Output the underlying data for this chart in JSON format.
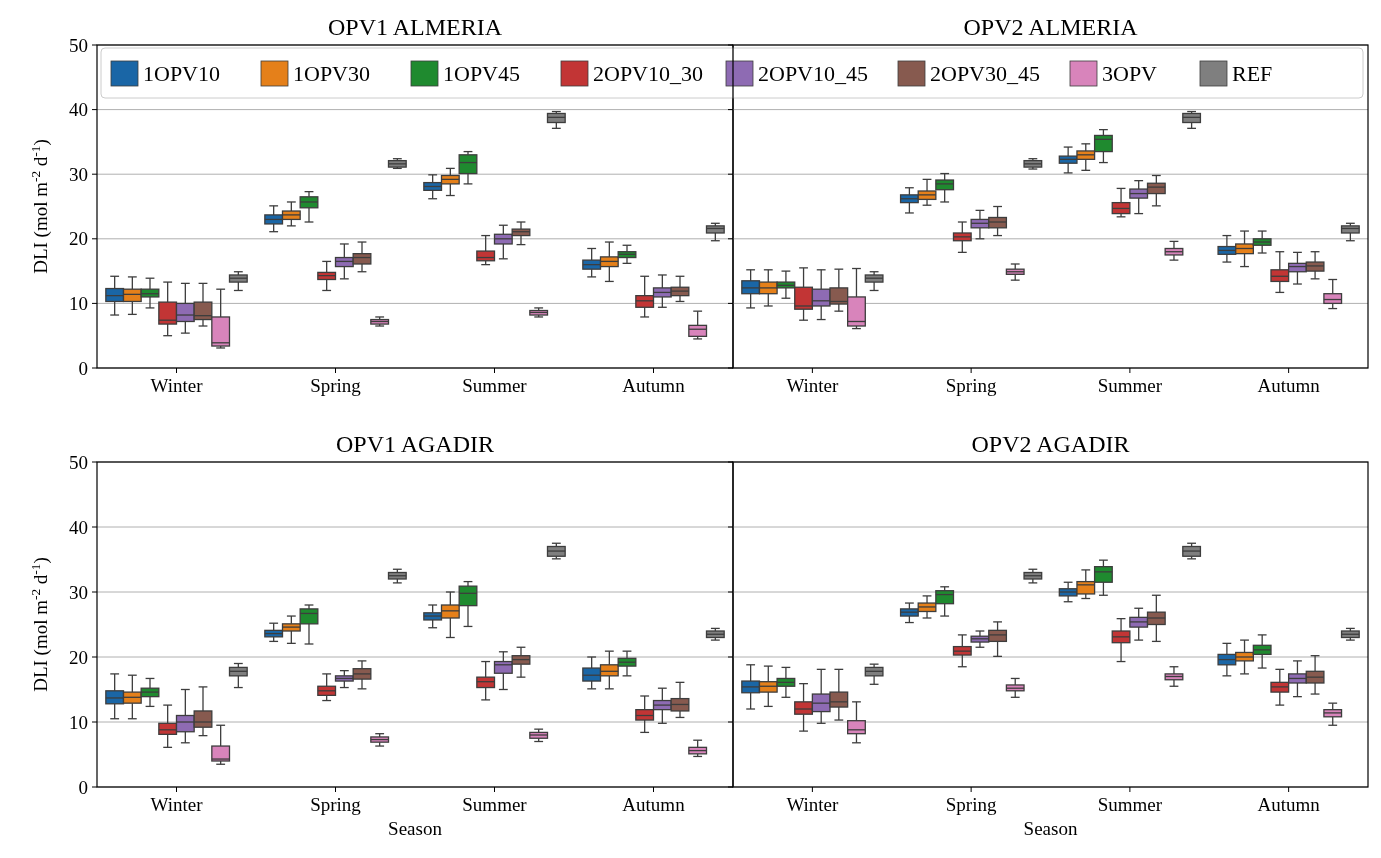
{
  "chart_data": [
    {
      "type": "box",
      "title": "OPV1 ALMERIA",
      "ylabel": "DLI (mol m$^{-2}$ d$^{-1}$)",
      "categories": [
        "Winter",
        "Spring",
        "Summer",
        "Autumn"
      ],
      "ylim": [
        0,
        50
      ],
      "yticks": [
        0,
        10,
        20,
        30,
        40,
        50
      ],
      "grid": "y",
      "legend": "top",
      "series": [
        {
          "name": "1OPV10",
          "color": "#1a66a6",
          "boxes": [
            {
              "low": 8.2,
              "q1": 10.3,
              "median": 11.2,
              "q3": 12.3,
              "high": 14.2
            },
            {
              "low": 21.1,
              "q1": 22.3,
              "median": 23.0,
              "q3": 23.7,
              "high": 25.1
            },
            {
              "low": 26.2,
              "q1": 27.5,
              "median": 28.1,
              "q3": 28.7,
              "high": 29.9
            },
            {
              "low": 14.1,
              "q1": 15.3,
              "median": 16.0,
              "q3": 16.7,
              "high": 18.5
            }
          ]
        },
        {
          "name": "1OPV30",
          "color": "#e5801a",
          "boxes": [
            {
              "low": 8.3,
              "q1": 10.3,
              "median": 11.4,
              "q3": 12.2,
              "high": 14.1
            },
            {
              "low": 22.0,
              "q1": 23.0,
              "median": 23.7,
              "q3": 24.3,
              "high": 25.7
            },
            {
              "low": 26.7,
              "q1": 28.5,
              "median": 29.2,
              "q3": 29.8,
              "high": 30.9
            },
            {
              "low": 13.4,
              "q1": 15.7,
              "median": 16.5,
              "q3": 17.2,
              "high": 19.5
            }
          ]
        },
        {
          "name": "1OPV45",
          "color": "#1f8a2f",
          "boxes": [
            {
              "low": 9.3,
              "q1": 11.0,
              "median": 11.5,
              "q3": 12.2,
              "high": 13.9
            },
            {
              "low": 22.6,
              "q1": 24.8,
              "median": 25.7,
              "q3": 26.5,
              "high": 27.3
            },
            {
              "low": 28.5,
              "q1": 30.1,
              "median": 31.8,
              "q3": 33.0,
              "high": 33.5
            },
            {
              "low": 16.2,
              "q1": 17.1,
              "median": 17.6,
              "q3": 18.0,
              "high": 19.0
            }
          ]
        },
        {
          "name": "2OPV10_30",
          "color": "#c23535",
          "boxes": [
            {
              "low": 5.0,
              "q1": 6.8,
              "median": 7.4,
              "q3": 10.2,
              "high": 13.3
            },
            {
              "low": 12.0,
              "q1": 13.7,
              "median": 14.3,
              "q3": 14.8,
              "high": 16.5
            },
            {
              "low": 16.0,
              "q1": 16.6,
              "median": 17.1,
              "q3": 18.1,
              "high": 20.5
            },
            {
              "low": 7.9,
              "q1": 9.4,
              "median": 10.4,
              "q3": 11.2,
              "high": 14.2
            }
          ]
        },
        {
          "name": "2OPV10_45",
          "color": "#8e6bb3",
          "boxes": [
            {
              "low": 5.4,
              "q1": 7.2,
              "median": 8.2,
              "q3": 10.0,
              "high": 13.1
            },
            {
              "low": 13.8,
              "q1": 15.7,
              "median": 16.5,
              "q3": 17.1,
              "high": 19.2
            },
            {
              "low": 16.9,
              "q1": 19.2,
              "median": 20.0,
              "q3": 20.7,
              "high": 22.1
            },
            {
              "low": 9.4,
              "q1": 11.0,
              "median": 11.7,
              "q3": 12.4,
              "high": 14.4
            }
          ]
        },
        {
          "name": "2OPV30_45",
          "color": "#875a4f",
          "boxes": [
            {
              "low": 6.5,
              "q1": 7.5,
              "median": 8.1,
              "q3": 10.2,
              "high": 13.1
            },
            {
              "low": 14.9,
              "q1": 16.1,
              "median": 17.1,
              "q3": 17.7,
              "high": 19.5
            },
            {
              "low": 19.1,
              "q1": 20.5,
              "median": 21.1,
              "q3": 21.5,
              "high": 22.6
            },
            {
              "low": 10.3,
              "q1": 11.2,
              "median": 11.9,
              "q3": 12.5,
              "high": 14.2
            }
          ]
        },
        {
          "name": "3OPV",
          "color": "#d884bb",
          "boxes": [
            {
              "low": 3.1,
              "q1": 3.4,
              "median": 3.9,
              "q3": 7.9,
              "high": 12.2
            },
            {
              "low": 6.5,
              "q1": 6.8,
              "median": 7.2,
              "q3": 7.5,
              "high": 7.9
            },
            {
              "low": 7.9,
              "q1": 8.2,
              "median": 8.6,
              "q3": 8.9,
              "high": 9.3
            },
            {
              "low": 4.5,
              "q1": 4.9,
              "median": 6.0,
              "q3": 6.6,
              "high": 8.8
            }
          ]
        },
        {
          "name": "REF",
          "color": "#7f7f7f",
          "boxes": [
            {
              "low": 12.0,
              "q1": 13.3,
              "median": 13.9,
              "q3": 14.4,
              "high": 14.9
            },
            {
              "low": 30.9,
              "q1": 31.1,
              "median": 31.6,
              "q3": 32.1,
              "high": 32.4
            },
            {
              "low": 37.1,
              "q1": 38.0,
              "median": 38.8,
              "q3": 39.4,
              "high": 39.7
            },
            {
              "low": 19.7,
              "q1": 20.9,
              "median": 21.6,
              "q3": 22.0,
              "high": 22.4
            }
          ]
        }
      ]
    },
    {
      "type": "box",
      "title": "OPV2 ALMERIA",
      "categories": [
        "Winter",
        "Spring",
        "Summer",
        "Autumn"
      ],
      "ylim": [
        0,
        50
      ],
      "yticks": [
        0,
        10,
        20,
        30,
        40,
        50
      ],
      "grid": "y",
      "tick_labels": "x",
      "series": [
        {
          "color": "#1a66a6",
          "boxes": [
            {
              "low": 9.3,
              "q1": 11.5,
              "median": 12.4,
              "q3": 13.5,
              "high": 15.2
            },
            {
              "low": 24.0,
              "q1": 25.6,
              "median": 26.2,
              "q3": 26.8,
              "high": 27.9
            },
            {
              "low": 30.2,
              "q1": 31.7,
              "median": 32.3,
              "q3": 32.8,
              "high": 34.2
            },
            {
              "low": 16.4,
              "q1": 17.6,
              "median": 18.2,
              "q3": 18.8,
              "high": 20.5
            }
          ]
        },
        {
          "color": "#e5801a",
          "boxes": [
            {
              "low": 9.6,
              "q1": 11.5,
              "median": 12.4,
              "q3": 13.3,
              "high": 15.2
            },
            {
              "low": 25.2,
              "q1": 26.1,
              "median": 26.8,
              "q3": 27.4,
              "high": 29.2
            },
            {
              "low": 30.6,
              "q1": 32.3,
              "median": 33.0,
              "q3": 33.6,
              "high": 34.7
            },
            {
              "low": 15.7,
              "q1": 17.7,
              "median": 18.5,
              "q3": 19.2,
              "high": 21.2
            }
          ]
        },
        {
          "color": "#1f8a2f",
          "boxes": [
            {
              "low": 10.8,
              "q1": 12.4,
              "median": 12.8,
              "q3": 13.3,
              "high": 15.0
            },
            {
              "low": 25.7,
              "q1": 27.6,
              "median": 28.5,
              "q3": 29.1,
              "high": 30.1
            },
            {
              "low": 31.8,
              "q1": 33.5,
              "median": 35.4,
              "q3": 36.0,
              "high": 36.9
            },
            {
              "low": 17.8,
              "q1": 19.0,
              "median": 19.5,
              "q3": 20.0,
              "high": 21.2
            }
          ]
        },
        {
          "color": "#c23535",
          "boxes": [
            {
              "low": 7.4,
              "q1": 9.1,
              "median": 9.6,
              "q3": 12.5,
              "high": 15.5
            },
            {
              "low": 17.9,
              "q1": 19.7,
              "median": 20.3,
              "q3": 20.9,
              "high": 22.6
            },
            {
              "low": 23.4,
              "q1": 23.9,
              "median": 24.7,
              "q3": 25.6,
              "high": 27.8
            },
            {
              "low": 11.7,
              "q1": 13.4,
              "median": 14.2,
              "q3": 15.2,
              "high": 18.0
            }
          ]
        },
        {
          "color": "#8e6bb3",
          "boxes": [
            {
              "low": 7.5,
              "q1": 9.6,
              "median": 10.4,
              "q3": 12.2,
              "high": 15.2
            },
            {
              "low": 20.0,
              "q1": 21.7,
              "median": 22.4,
              "q3": 23.0,
              "high": 24.4
            },
            {
              "low": 23.9,
              "q1": 26.3,
              "median": 27.0,
              "q3": 27.7,
              "high": 29.0
            },
            {
              "low": 13.0,
              "q1": 14.9,
              "median": 15.7,
              "q3": 16.2,
              "high": 17.9
            }
          ]
        },
        {
          "color": "#875a4f",
          "boxes": [
            {
              "low": 8.8,
              "q1": 9.9,
              "median": 10.3,
              "q3": 12.4,
              "high": 15.3
            },
            {
              "low": 20.5,
              "q1": 21.7,
              "median": 22.6,
              "q3": 23.3,
              "high": 25.0
            },
            {
              "low": 25.1,
              "q1": 27.0,
              "median": 28.0,
              "q3": 28.6,
              "high": 29.8
            },
            {
              "low": 13.8,
              "q1": 15.0,
              "median": 15.8,
              "q3": 16.4,
              "high": 18.0
            }
          ]
        },
        {
          "color": "#d884bb",
          "boxes": [
            {
              "low": 6.1,
              "q1": 6.5,
              "median": 7.2,
              "q3": 11.0,
              "high": 15.4
            },
            {
              "low": 13.6,
              "q1": 14.5,
              "median": 14.9,
              "q3": 15.3,
              "high": 16.1
            },
            {
              "low": 16.7,
              "q1": 17.5,
              "median": 18.0,
              "q3": 18.5,
              "high": 19.6
            },
            {
              "low": 9.2,
              "q1": 10.0,
              "median": 10.6,
              "q3": 11.5,
              "high": 13.7
            }
          ]
        },
        {
          "color": "#7f7f7f",
          "boxes": [
            {
              "low": 12.0,
              "q1": 13.3,
              "median": 13.9,
              "q3": 14.4,
              "high": 14.9
            },
            {
              "low": 30.8,
              "q1": 31.1,
              "median": 31.6,
              "q3": 32.1,
              "high": 32.4
            },
            {
              "low": 37.1,
              "q1": 38.0,
              "median": 38.8,
              "q3": 39.4,
              "high": 39.7
            },
            {
              "low": 19.7,
              "q1": 20.9,
              "median": 21.6,
              "q3": 22.0,
              "high": 22.4
            }
          ]
        }
      ]
    },
    {
      "type": "box",
      "title": "OPV1 AGADIR",
      "xlabel": "Season",
      "ylabel": "DLI (mol m$^{-2}$ d$^{-1}$)",
      "categories": [
        "Winter",
        "Spring",
        "Summer",
        "Autumn"
      ],
      "ylim": [
        0,
        50
      ],
      "yticks": [
        0,
        10,
        20,
        30,
        40,
        50
      ],
      "grid": "y",
      "series": [
        {
          "color": "#1a66a6",
          "boxes": [
            {
              "low": 10.5,
              "q1": 12.8,
              "median": 13.7,
              "q3": 14.8,
              "high": 17.4
            },
            {
              "low": 22.4,
              "q1": 23.1,
              "median": 23.6,
              "q3": 24.1,
              "high": 25.2
            },
            {
              "low": 24.5,
              "q1": 25.7,
              "median": 26.3,
              "q3": 26.8,
              "high": 28.0
            },
            {
              "low": 15.1,
              "q1": 16.3,
              "median": 17.2,
              "q3": 18.3,
              "high": 20.0
            }
          ]
        },
        {
          "color": "#e5801a",
          "boxes": [
            {
              "low": 10.5,
              "q1": 12.9,
              "median": 13.8,
              "q3": 14.6,
              "high": 17.2
            },
            {
              "low": 22.1,
              "q1": 24.0,
              "median": 24.6,
              "q3": 25.1,
              "high": 26.3
            },
            {
              "low": 23.0,
              "q1": 26.0,
              "median": 27.1,
              "q3": 28.0,
              "high": 30.0
            },
            {
              "low": 15.1,
              "q1": 17.1,
              "median": 17.8,
              "q3": 18.8,
              "high": 20.9
            }
          ]
        },
        {
          "color": "#1f8a2f",
          "boxes": [
            {
              "low": 12.4,
              "q1": 13.9,
              "median": 14.6,
              "q3": 15.2,
              "high": 16.7
            },
            {
              "low": 22.0,
              "q1": 25.1,
              "median": 26.7,
              "q3": 27.4,
              "high": 28.0
            },
            {
              "low": 24.7,
              "q1": 27.9,
              "median": 29.8,
              "q3": 30.9,
              "high": 31.6
            },
            {
              "low": 17.1,
              "q1": 18.6,
              "median": 19.2,
              "q3": 19.8,
              "high": 20.9
            }
          ]
        },
        {
          "color": "#c23535",
          "boxes": [
            {
              "low": 6.1,
              "q1": 8.1,
              "median": 8.8,
              "q3": 9.8,
              "high": 12.6
            },
            {
              "low": 13.3,
              "q1": 14.1,
              "median": 14.8,
              "q3": 15.5,
              "high": 17.4
            },
            {
              "low": 13.4,
              "q1": 15.3,
              "median": 16.2,
              "q3": 16.9,
              "high": 19.3
            },
            {
              "low": 8.4,
              "q1": 10.3,
              "median": 11.0,
              "q3": 11.9,
              "high": 14.0
            }
          ]
        },
        {
          "color": "#8e6bb3",
          "boxes": [
            {
              "low": 6.8,
              "q1": 8.5,
              "median": 10.0,
              "q3": 11.0,
              "high": 15.0
            },
            {
              "low": 15.3,
              "q1": 16.3,
              "median": 16.7,
              "q3": 17.1,
              "high": 17.9
            },
            {
              "low": 15.0,
              "q1": 17.5,
              "median": 18.8,
              "q3": 19.3,
              "high": 20.8
            },
            {
              "low": 9.8,
              "q1": 11.9,
              "median": 12.6,
              "q3": 13.3,
              "high": 15.2
            }
          ]
        },
        {
          "color": "#875a4f",
          "boxes": [
            {
              "low": 7.9,
              "q1": 9.2,
              "median": 10.0,
              "q3": 11.7,
              "high": 15.4
            },
            {
              "low": 15.1,
              "q1": 16.6,
              "median": 17.4,
              "q3": 18.2,
              "high": 19.4
            },
            {
              "low": 16.9,
              "q1": 18.9,
              "median": 19.6,
              "q3": 20.2,
              "high": 21.5
            },
            {
              "low": 10.7,
              "q1": 11.7,
              "median": 12.7,
              "q3": 13.6,
              "high": 16.1
            }
          ]
        },
        {
          "color": "#d884bb",
          "boxes": [
            {
              "low": 3.5,
              "q1": 4.0,
              "median": 4.3,
              "q3": 6.3,
              "high": 9.5
            },
            {
              "low": 6.3,
              "q1": 6.9,
              "median": 7.3,
              "q3": 7.7,
              "high": 8.2
            },
            {
              "low": 7.0,
              "q1": 7.5,
              "median": 8.0,
              "q3": 8.4,
              "high": 8.9
            },
            {
              "low": 4.7,
              "q1": 5.1,
              "median": 5.6,
              "q3": 6.1,
              "high": 7.2
            }
          ]
        },
        {
          "color": "#7f7f7f",
          "boxes": [
            {
              "low": 15.3,
              "q1": 17.1,
              "median": 17.8,
              "q3": 18.4,
              "high": 19.0
            },
            {
              "low": 31.4,
              "q1": 32.0,
              "median": 32.5,
              "q3": 33.0,
              "high": 33.5
            },
            {
              "low": 35.1,
              "q1": 35.5,
              "median": 36.3,
              "q3": 37.0,
              "high": 37.5
            },
            {
              "low": 22.6,
              "q1": 23.0,
              "median": 23.5,
              "q3": 24.0,
              "high": 24.4
            }
          ]
        }
      ]
    },
    {
      "type": "box",
      "title": "OPV2 AGADIR",
      "xlabel": "Season",
      "categories": [
        "Winter",
        "Spring",
        "Summer",
        "Autumn"
      ],
      "ylim": [
        0,
        50
      ],
      "yticks": [
        0,
        10,
        20,
        30,
        40,
        50
      ],
      "grid": "y",
      "tick_labels": "x",
      "series": [
        {
          "color": "#1a66a6",
          "boxes": [
            {
              "low": 12.0,
              "q1": 14.5,
              "median": 15.4,
              "q3": 16.3,
              "high": 18.8
            },
            {
              "low": 25.3,
              "q1": 26.3,
              "median": 26.9,
              "q3": 27.4,
              "high": 28.3
            },
            {
              "low": 28.5,
              "q1": 29.4,
              "median": 30.0,
              "q3": 30.5,
              "high": 31.5
            },
            {
              "low": 17.1,
              "q1": 18.8,
              "median": 19.6,
              "q3": 20.4,
              "high": 22.1
            }
          ]
        },
        {
          "color": "#e5801a",
          "boxes": [
            {
              "low": 12.4,
              "q1": 14.6,
              "median": 15.5,
              "q3": 16.2,
              "high": 18.6
            },
            {
              "low": 26.0,
              "q1": 27.0,
              "median": 27.7,
              "q3": 28.3,
              "high": 29.4
            },
            {
              "low": 29.0,
              "q1": 29.7,
              "median": 31.1,
              "q3": 31.6,
              "high": 33.4
            },
            {
              "low": 17.4,
              "q1": 19.4,
              "median": 20.0,
              "q3": 20.7,
              "high": 22.6
            }
          ]
        },
        {
          "color": "#1f8a2f",
          "boxes": [
            {
              "low": 13.8,
              "q1": 15.5,
              "median": 16.1,
              "q3": 16.7,
              "high": 18.4
            },
            {
              "low": 26.3,
              "q1": 28.2,
              "median": 29.6,
              "q3": 30.2,
              "high": 30.8
            },
            {
              "low": 29.5,
              "q1": 31.5,
              "median": 33.1,
              "q3": 33.9,
              "high": 34.9
            },
            {
              "low": 18.3,
              "q1": 20.4,
              "median": 21.1,
              "q3": 21.8,
              "high": 23.4
            }
          ]
        },
        {
          "color": "#c23535",
          "boxes": [
            {
              "low": 8.6,
              "q1": 11.2,
              "median": 12.0,
              "q3": 13.1,
              "high": 15.9
            },
            {
              "low": 18.5,
              "q1": 20.3,
              "median": 20.9,
              "q3": 21.6,
              "high": 23.4
            },
            {
              "low": 19.3,
              "q1": 22.2,
              "median": 23.1,
              "q3": 24.0,
              "high": 25.9
            },
            {
              "low": 12.6,
              "q1": 14.6,
              "median": 15.4,
              "q3": 16.1,
              "high": 18.1
            }
          ]
        },
        {
          "color": "#8e6bb3",
          "boxes": [
            {
              "low": 9.8,
              "q1": 11.6,
              "median": 12.9,
              "q3": 14.3,
              "high": 18.1
            },
            {
              "low": 21.5,
              "q1": 22.3,
              "median": 22.8,
              "q3": 23.2,
              "high": 24.0
            },
            {
              "low": 22.6,
              "q1": 24.6,
              "median": 25.4,
              "q3": 26.1,
              "high": 27.5
            },
            {
              "low": 13.9,
              "q1": 16.0,
              "median": 16.7,
              "q3": 17.4,
              "high": 19.4
            }
          ]
        },
        {
          "color": "#875a4f",
          "boxes": [
            {
              "low": 10.3,
              "q1": 12.3,
              "median": 13.1,
              "q3": 14.6,
              "high": 18.1
            },
            {
              "low": 20.1,
              "q1": 22.4,
              "median": 23.4,
              "q3": 24.1,
              "high": 25.4
            },
            {
              "low": 22.4,
              "q1": 25.0,
              "median": 26.0,
              "q3": 26.9,
              "high": 29.5
            },
            {
              "low": 14.3,
              "q1": 16.0,
              "median": 16.9,
              "q3": 17.8,
              "high": 20.2
            }
          ]
        },
        {
          "color": "#d884bb",
          "boxes": [
            {
              "low": 6.8,
              "q1": 8.2,
              "median": 8.8,
              "q3": 10.2,
              "high": 13.1
            },
            {
              "low": 13.8,
              "q1": 14.8,
              "median": 15.2,
              "q3": 15.7,
              "high": 16.7
            },
            {
              "low": 15.5,
              "q1": 16.5,
              "median": 17.0,
              "q3": 17.4,
              "high": 18.5
            },
            {
              "low": 9.5,
              "q1": 10.8,
              "median": 11.4,
              "q3": 11.9,
              "high": 12.9
            }
          ]
        },
        {
          "color": "#7f7f7f",
          "boxes": [
            {
              "low": 15.8,
              "q1": 17.1,
              "median": 17.8,
              "q3": 18.4,
              "high": 18.9
            },
            {
              "low": 31.4,
              "q1": 32.0,
              "median": 32.5,
              "q3": 33.0,
              "high": 33.5
            },
            {
              "low": 35.1,
              "q1": 35.5,
              "median": 36.3,
              "q3": 37.0,
              "high": 37.5
            },
            {
              "low": 22.6,
              "q1": 23.0,
              "median": 23.5,
              "q3": 24.0,
              "high": 24.4
            }
          ]
        }
      ]
    }
  ]
}
